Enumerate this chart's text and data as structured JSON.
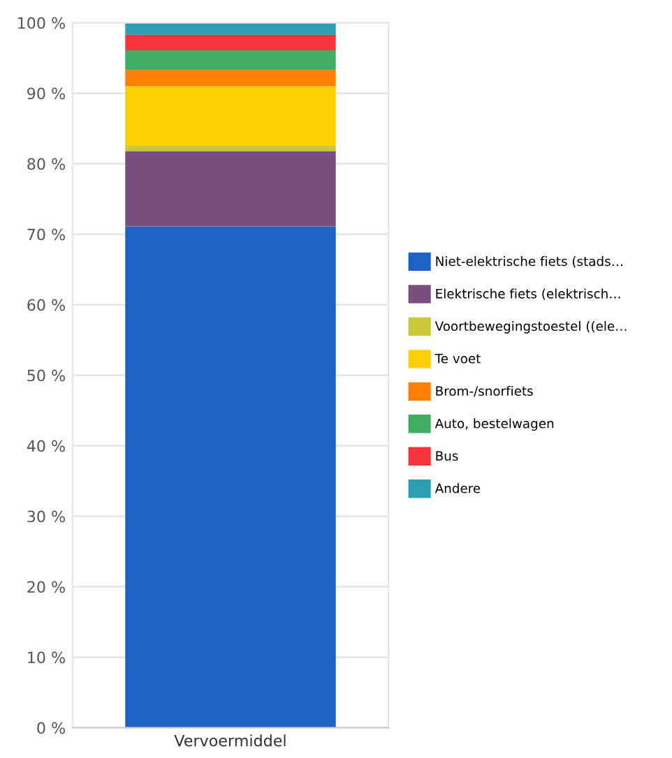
{
  "chart_data": {
    "type": "bar",
    "stacked": true,
    "categories": [
      "Vervoermiddel"
    ],
    "series": [
      {
        "name": "Niet-elektrische fiets (stads…",
        "color": "#1f62c6",
        "values": [
          71.1
        ]
      },
      {
        "name": "Elektrische fiets (elektrisch…",
        "color": "#7b4f7d",
        "values": [
          10.7
        ]
      },
      {
        "name": "Voortbewegingstoestel ((ele…",
        "color": "#c8c83a",
        "values": [
          0.8
        ]
      },
      {
        "name": "Te voet",
        "color": "#ffd000",
        "values": [
          8.4
        ]
      },
      {
        "name": "Brom-/snorfiets",
        "color": "#ff8000",
        "values": [
          2.3
        ]
      },
      {
        "name": "Auto, bestelwagen",
        "color": "#41ad63",
        "values": [
          2.8
        ]
      },
      {
        "name": "Bus",
        "color": "#f8333c",
        "values": [
          2.2
        ]
      },
      {
        "name": "Andere",
        "color": "#2a9fb3",
        "values": [
          1.7
        ]
      }
    ],
    "ylim": [
      0,
      100
    ],
    "yticks": [
      {
        "value": 0,
        "label": "0 %"
      },
      {
        "value": 10,
        "label": "10 %"
      },
      {
        "value": 20,
        "label": "20 %"
      },
      {
        "value": 30,
        "label": "30 %"
      },
      {
        "value": 40,
        "label": "40 %"
      },
      {
        "value": 50,
        "label": "50 %"
      },
      {
        "value": 60,
        "label": "60 %"
      },
      {
        "value": 70,
        "label": "70 %"
      },
      {
        "value": 80,
        "label": "80 %"
      },
      {
        "value": 90,
        "label": "90 %"
      },
      {
        "value": 100,
        "label": "100 %"
      }
    ],
    "grid": "y",
    "legend": "right"
  }
}
